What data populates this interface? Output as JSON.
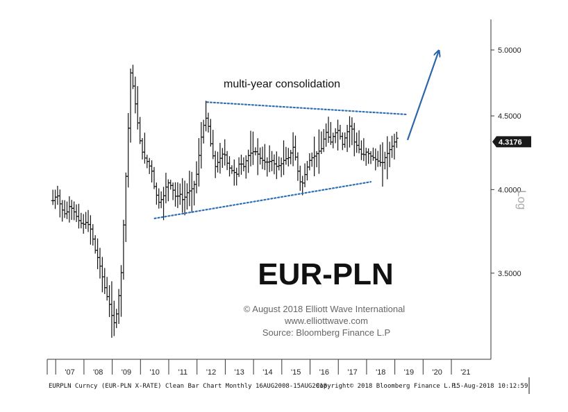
{
  "chart_data": {
    "type": "bar",
    "subtype": "ohlc-monthly",
    "title": "EUR-PLN",
    "annotation": "multi-year consolidation",
    "credits": [
      "© August 2018 Elliott Wave International",
      "www.elliottwave.com",
      "Source: Bloomberg Finance L.P"
    ],
    "scale_label": "Log",
    "y_axis": {
      "scale": "log",
      "position": "right",
      "range": [
        3.05,
        5.25
      ],
      "ticks": [
        {
          "value": 5.0,
          "label": "5.0000"
        },
        {
          "value": 4.5,
          "label": "4.5000"
        },
        {
          "value": 4.0,
          "label": "4.0000"
        },
        {
          "value": 3.5,
          "label": "3.5000"
        }
      ]
    },
    "last_price": {
      "value": 4.3176,
      "label": "4.3176"
    },
    "x_axis": {
      "range": [
        2006.2,
        2021.9
      ],
      "ticks": [
        {
          "value": 2007,
          "label": "'07"
        },
        {
          "value": 2008,
          "label": "'08"
        },
        {
          "value": 2009,
          "label": "'09"
        },
        {
          "value": 2010,
          "label": "'10"
        },
        {
          "value": 2011,
          "label": "'11"
        },
        {
          "value": 2012,
          "label": "'12"
        },
        {
          "value": 2013,
          "label": "'13"
        },
        {
          "value": 2014,
          "label": "'14"
        },
        {
          "value": 2015,
          "label": "'15"
        },
        {
          "value": 2016,
          "label": "'16"
        },
        {
          "value": 2017,
          "label": "'17"
        },
        {
          "value": 2018,
          "label": "'18"
        },
        {
          "value": 2019,
          "label": "'19"
        },
        {
          "value": 2020,
          "label": "'20"
        },
        {
          "value": 2021,
          "label": "'21"
        }
      ]
    },
    "price_path": [
      [
        2006.4,
        3.93
      ],
      [
        2006.55,
        3.97
      ],
      [
        2006.7,
        3.88
      ],
      [
        2006.85,
        3.84
      ],
      [
        2007.0,
        3.9
      ],
      [
        2007.15,
        3.86
      ],
      [
        2007.3,
        3.81
      ],
      [
        2007.45,
        3.78
      ],
      [
        2007.6,
        3.8
      ],
      [
        2007.75,
        3.75
      ],
      [
        2007.9,
        3.63
      ],
      [
        2008.0,
        3.58
      ],
      [
        2008.1,
        3.52
      ],
      [
        2008.2,
        3.44
      ],
      [
        2008.3,
        3.38
      ],
      [
        2008.4,
        3.33
      ],
      [
        2008.5,
        3.26
      ],
      [
        2008.6,
        3.22
      ],
      [
        2008.7,
        3.34
      ],
      [
        2008.8,
        3.45
      ],
      [
        2008.9,
        3.78
      ],
      [
        2009.0,
        4.15
      ],
      [
        2009.1,
        4.55
      ],
      [
        2009.15,
        4.82
      ],
      [
        2009.25,
        4.7
      ],
      [
        2009.4,
        4.45
      ],
      [
        2009.5,
        4.3
      ],
      [
        2009.6,
        4.22
      ],
      [
        2009.75,
        4.18
      ],
      [
        2009.9,
        4.12
      ],
      [
        2010.0,
        4.0
      ],
      [
        2010.15,
        3.92
      ],
      [
        2010.3,
        3.95
      ],
      [
        2010.45,
        4.05
      ],
      [
        2010.6,
        4.02
      ],
      [
        2010.75,
        3.95
      ],
      [
        2010.9,
        3.97
      ],
      [
        2011.0,
        3.93
      ],
      [
        2011.15,
        3.98
      ],
      [
        2011.3,
        4.0
      ],
      [
        2011.45,
        4.05
      ],
      [
        2011.55,
        4.2
      ],
      [
        2011.65,
        4.35
      ],
      [
        2011.75,
        4.45
      ],
      [
        2011.85,
        4.5
      ],
      [
        2012.0,
        4.28
      ],
      [
        2012.15,
        4.15
      ],
      [
        2012.3,
        4.2
      ],
      [
        2012.45,
        4.25
      ],
      [
        2012.6,
        4.15
      ],
      [
        2012.75,
        4.12
      ],
      [
        2012.9,
        4.1
      ],
      [
        2013.0,
        4.18
      ],
      [
        2013.15,
        4.15
      ],
      [
        2013.3,
        4.22
      ],
      [
        2013.45,
        4.25
      ],
      [
        2013.6,
        4.25
      ],
      [
        2013.75,
        4.2
      ],
      [
        2013.9,
        4.18
      ],
      [
        2014.0,
        4.18
      ],
      [
        2014.15,
        4.19
      ],
      [
        2014.3,
        4.15
      ],
      [
        2014.45,
        4.16
      ],
      [
        2014.6,
        4.2
      ],
      [
        2014.75,
        4.21
      ],
      [
        2014.9,
        4.28
      ],
      [
        2015.0,
        4.2
      ],
      [
        2015.1,
        4.08
      ],
      [
        2015.2,
        4.02
      ],
      [
        2015.35,
        4.12
      ],
      [
        2015.5,
        4.2
      ],
      [
        2015.65,
        4.22
      ],
      [
        2015.8,
        4.25
      ],
      [
        2015.9,
        4.27
      ],
      [
        2016.0,
        4.35
      ],
      [
        2016.1,
        4.4
      ],
      [
        2016.2,
        4.3
      ],
      [
        2016.35,
        4.37
      ],
      [
        2016.5,
        4.4
      ],
      [
        2016.65,
        4.3
      ],
      [
        2016.8,
        4.38
      ],
      [
        2016.95,
        4.45
      ],
      [
        2017.05,
        4.32
      ],
      [
        2017.2,
        4.28
      ],
      [
        2017.35,
        4.22
      ],
      [
        2017.5,
        4.25
      ],
      [
        2017.65,
        4.22
      ],
      [
        2017.8,
        4.2
      ],
      [
        2017.95,
        4.18
      ],
      [
        2018.05,
        4.17
      ],
      [
        2018.15,
        4.21
      ],
      [
        2018.3,
        4.26
      ],
      [
        2018.45,
        4.3
      ],
      [
        2018.55,
        4.35
      ],
      [
        2018.62,
        4.3176
      ]
    ],
    "trend_lines": [
      {
        "style": "dotted",
        "from": [
          2011.85,
          4.6
        ],
        "to": [
          2018.95,
          4.51
        ]
      },
      {
        "style": "dotted",
        "from": [
          2010.0,
          3.82
        ],
        "to": [
          2017.65,
          4.05
        ]
      }
    ],
    "forecast_arrow": {
      "from": [
        2018.95,
        4.33
      ],
      "to": [
        2020.05,
        4.99
      ]
    },
    "colors": {
      "bars": "#111111",
      "trend": "#2e6eb5",
      "arrow": "#2b66a8",
      "price_tag": "#1a1a1a"
    }
  },
  "footer": {
    "left": "EURPLN Curncy (EUR-PLN X-RATE) Clean Bar Chart  Monthly 16AUG2008-15AUG2018",
    "middle": "Copyright© 2018 Bloomberg Finance L.P.",
    "right": "15-Aug-2018 10:12:59"
  }
}
